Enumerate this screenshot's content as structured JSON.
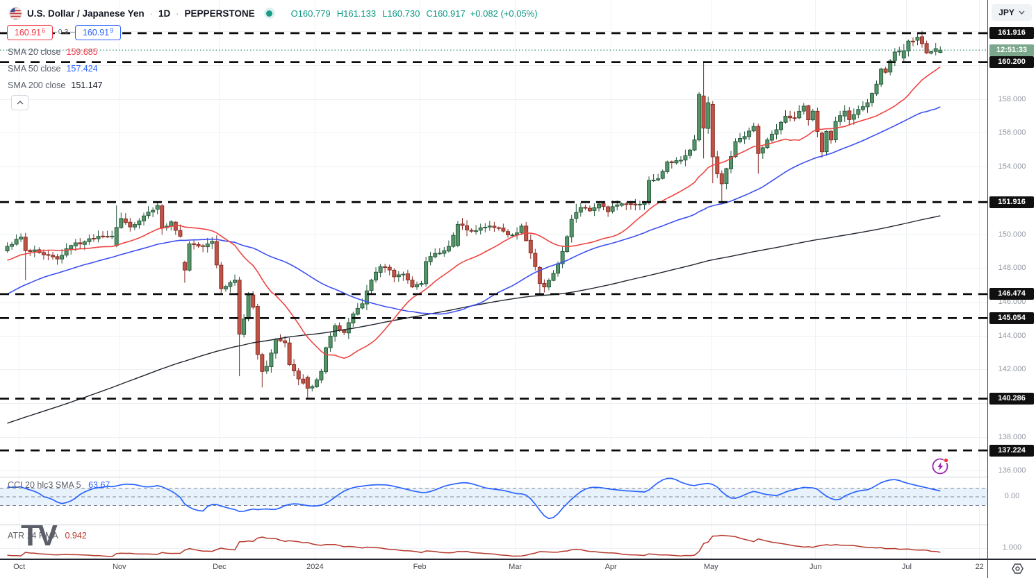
{
  "colors": {
    "green": "#089981",
    "red": "#f23645",
    "blue": "#2962ff",
    "text": "#131722",
    "sub": "#5a5e69",
    "axis_text": "#9196a1",
    "time_text": "#43474f",
    "up_fill": "#559668",
    "up_border": "#2a5b3f",
    "down_fill": "#bf5447",
    "down_border": "#8a2f27",
    "sma20": "#ee4440",
    "sma50": "#3c50f0",
    "sma200": "#20242e",
    "cci_line": "#2962ff",
    "cci_band": "#e8f2fd",
    "atr_line": "#b5362a",
    "level": "#0b0b0b",
    "current": "#3f947c",
    "countdown_bg": "#7ba78c",
    "grid": "#eef1f5",
    "divider": "#cdd0d8",
    "axis_border": "#43464e",
    "label_bg": "#101010"
  },
  "header": {
    "symbol": "U.S. Dollar / Japanese Yen",
    "separator": "·",
    "interval": "1D",
    "exchange": "PEPPERSTONE",
    "ohlc": [
      "O160.779",
      "H161.133",
      "L160.730",
      "C160.917"
    ],
    "change": "+0.082 (+0.05%)"
  },
  "quote": {
    "bid_main": "160.91",
    "bid_sup": "6",
    "spread": "0.3",
    "ask_main": "160.91",
    "ask_sup": "9"
  },
  "legend": {
    "sma_rows": [
      {
        "label": "SMA 20 close",
        "value": "159.685",
        "color": "#f23645"
      },
      {
        "label": "SMA 50 close",
        "value": "157.424",
        "color": "#2962ff"
      },
      {
        "label": "SMA 200 close",
        "value": "151.147",
        "color": "#131722"
      }
    ]
  },
  "indicators": {
    "cci_label": "CCI 20 hlc3 SMA 5",
    "cci_value": "63.67",
    "atr_label": "ATR 14 RMA",
    "atr_value": "0.942"
  },
  "price_axis": {
    "currency": "JPY",
    "countdown": "12:51:33",
    "ticks": [
      158,
      156,
      154,
      150,
      148,
      146,
      144,
      142,
      138,
      136
    ],
    "cci_tick": "0.00",
    "atr_tick": "1.000"
  },
  "time_axis": {
    "labels": [
      {
        "t": "Oct",
        "d": 3
      },
      {
        "t": "Nov",
        "d": 25
      },
      {
        "t": "Dec",
        "d": 47
      },
      {
        "t": "2024",
        "d": 68
      },
      {
        "t": "Feb",
        "d": 91
      },
      {
        "t": "Mar",
        "d": 112
      },
      {
        "t": "Apr",
        "d": 133
      },
      {
        "t": "May",
        "d": 155
      },
      {
        "t": "Jun",
        "d": 178
      },
      {
        "t": "Jul",
        "d": 198
      },
      {
        "t": "22",
        "d": 214
      }
    ]
  },
  "watermark": "TV",
  "icons": {
    "flag": "us-flag-icon",
    "status": "market-status-dot",
    "collapse": "chevron-up-icon",
    "dropdown": "chevron-down-icon",
    "spark": "lightning-icon",
    "timezone": "gear-icon"
  },
  "chart_data": {
    "type": "candlestick",
    "symbol": "USDJPY",
    "timeframe": "1D",
    "current_price": 160.917,
    "ohlc_last": {
      "open": 160.779,
      "high": 161.133,
      "low": 160.73,
      "close": 160.917,
      "change": 0.082,
      "change_pct": 0.05
    },
    "levels": [
      161.916,
      160.2,
      151.916,
      146.474,
      145.054,
      140.286,
      137.224
    ],
    "grid_prices": [
      162,
      160,
      158,
      156,
      154,
      152,
      150,
      148,
      146,
      144,
      142,
      140,
      138,
      136
    ],
    "sma_values": {
      "sma20": 159.685,
      "sma50": 157.424,
      "sma200": 151.147
    },
    "cci": {
      "period": 20,
      "source": "hlc3",
      "smooth": 5,
      "last": 63.67,
      "band": 100
    },
    "atr": {
      "period": 14,
      "mode": "RMA",
      "last": 0.942
    },
    "prehistory": [
      [
        -200,
        131.8
      ],
      [
        -175,
        130.2
      ],
      [
        -150,
        133.5
      ],
      [
        -125,
        136.0
      ],
      [
        -100,
        139.5
      ],
      [
        -80,
        143.5
      ],
      [
        -65,
        138.8
      ],
      [
        -50,
        142.0
      ],
      [
        -35,
        145.5
      ],
      [
        -20,
        147.3
      ],
      [
        -10,
        148.6
      ],
      [
        -1,
        149.2
      ]
    ],
    "anchors": [
      [
        0,
        149.3
      ],
      [
        3,
        149.85
      ],
      [
        4,
        149.05
      ],
      [
        8,
        148.8
      ],
      [
        11,
        148.55
      ],
      [
        14,
        149.35
      ],
      [
        18,
        149.75
      ],
      [
        21,
        149.9
      ],
      [
        23,
        149.9
      ],
      [
        25,
        150.95
      ],
      [
        27,
        150.45
      ],
      [
        30,
        151.1
      ],
      [
        33,
        151.72
      ],
      [
        34,
        150.4
      ],
      [
        36,
        150.75
      ],
      [
        38,
        149.9
      ],
      [
        39,
        147.9
      ],
      [
        40,
        149.45
      ],
      [
        43,
        149.3
      ],
      [
        45,
        149.6
      ],
      [
        46,
        148.2
      ],
      [
        47,
        146.8
      ],
      [
        49,
        147.15
      ],
      [
        50,
        147.3
      ],
      [
        51,
        144.1
      ],
      [
        52,
        145.0
      ],
      [
        53,
        146.4
      ],
      [
        54,
        145.7
      ],
      [
        55,
        142.9
      ],
      [
        56,
        141.9
      ],
      [
        57,
        142.2
      ],
      [
        59,
        143.8
      ],
      [
        61,
        143.6
      ],
      [
        62,
        142.3
      ],
      [
        64,
        141.45
      ],
      [
        66,
        140.9
      ],
      [
        67,
        141.0
      ],
      [
        68,
        141.4
      ],
      [
        69,
        141.9
      ],
      [
        70,
        143.3
      ],
      [
        72,
        144.6
      ],
      [
        74,
        144.2
      ],
      [
        76,
        145.3
      ],
      [
        78,
        145.9
      ],
      [
        80,
        147.3
      ],
      [
        82,
        148.1
      ],
      [
        84,
        147.9
      ],
      [
        85,
        147.5
      ],
      [
        87,
        147.65
      ],
      [
        89,
        146.9
      ],
      [
        91,
        147.1
      ],
      [
        92,
        148.4
      ],
      [
        93,
        148.7
      ],
      [
        95,
        148.9
      ],
      [
        97,
        149.3
      ],
      [
        99,
        150.6
      ],
      [
        102,
        150.2
      ],
      [
        104,
        150.4
      ],
      [
        106,
        150.5
      ],
      [
        108,
        150.4
      ],
      [
        110,
        149.98
      ],
      [
        112,
        150.1
      ],
      [
        113,
        150.5
      ],
      [
        116,
        148.1
      ],
      [
        117,
        147.1
      ],
      [
        118,
        146.9
      ],
      [
        120,
        147.7
      ],
      [
        122,
        149.0
      ],
      [
        124,
        150.9
      ],
      [
        125,
        151.3
      ],
      [
        126,
        151.6
      ],
      [
        128,
        151.4
      ],
      [
        130,
        151.8
      ],
      [
        132,
        151.35
      ],
      [
        133,
        151.65
      ],
      [
        136,
        151.8
      ],
      [
        140,
        151.9
      ],
      [
        141,
        153.2
      ],
      [
        143,
        153.3
      ],
      [
        145,
        154.3
      ],
      [
        148,
        154.4
      ],
      [
        150,
        155.0
      ],
      [
        151,
        155.6
      ],
      [
        152,
        158.3
      ],
      [
        153,
        156.3
      ],
      [
        154,
        157.8
      ],
      [
        155,
        154.6
      ],
      [
        156,
        153.6
      ],
      [
        157,
        153.0
      ],
      [
        158,
        153.9
      ],
      [
        160,
        155.5
      ],
      [
        162,
        155.8
      ],
      [
        164,
        156.4
      ],
      [
        165,
        154.8
      ],
      [
        167,
        155.6
      ],
      [
        169,
        156.2
      ],
      [
        171,
        157.0
      ],
      [
        173,
        156.9
      ],
      [
        175,
        157.6
      ],
      [
        176,
        156.8
      ],
      [
        177,
        157.3
      ],
      [
        178,
        156.1
      ],
      [
        179,
        154.9
      ],
      [
        180,
        156.1
      ],
      [
        181,
        155.6
      ],
      [
        182,
        156.7
      ],
      [
        184,
        157.3
      ],
      [
        185,
        156.8
      ],
      [
        187,
        157.4
      ],
      [
        189,
        157.8
      ],
      [
        191,
        158.9
      ],
      [
        192,
        159.8
      ],
      [
        193,
        159.6
      ],
      [
        195,
        160.8
      ],
      [
        197,
        160.88
      ],
      [
        198,
        161.45
      ],
      [
        199,
        161.44
      ],
      [
        200,
        161.68
      ],
      [
        201,
        161.3
      ],
      [
        202,
        160.75
      ],
      [
        203,
        160.82
      ],
      [
        204,
        161.0
      ],
      [
        205,
        160.917
      ]
    ],
    "specials": {
      "4": [
        149.85,
        150.1,
        147.3,
        149.05
      ],
      "24": [
        149.35,
        151.72,
        149.25,
        150.42
      ],
      "33": [
        151.5,
        151.91,
        151.2,
        151.72
      ],
      "34": [
        151.7,
        151.8,
        150.0,
        150.4
      ],
      "39": [
        148.35,
        148.45,
        147.15,
        147.9
      ],
      "51": [
        147.3,
        147.5,
        141.62,
        144.1
      ],
      "55": [
        145.75,
        145.9,
        142.6,
        142.9
      ],
      "56": [
        142.9,
        143.0,
        140.95,
        141.9
      ],
      "66": [
        141.55,
        141.65,
        140.25,
        140.9
      ],
      "99": [
        149.35,
        150.8,
        149.25,
        150.6
      ],
      "117": [
        148.05,
        148.15,
        146.48,
        147.1
      ],
      "125": [
        150.95,
        151.82,
        150.7,
        151.3
      ],
      "152": [
        155.6,
        158.44,
        155.5,
        158.3
      ],
      "153": [
        158.2,
        160.17,
        154.5,
        156.3
      ],
      "155": [
        157.7,
        157.9,
        153.04,
        154.6
      ],
      "157": [
        153.6,
        153.8,
        151.86,
        153.0
      ],
      "165": [
        156.4,
        156.55,
        153.6,
        154.8
      ],
      "179": [
        156.0,
        156.1,
        154.55,
        154.9
      ],
      "197": [
        160.45,
        161.28,
        160.26,
        160.88
      ],
      "200": [
        161.5,
        161.95,
        161.2,
        161.68
      ],
      "205": [
        160.779,
        161.133,
        160.73,
        160.917
      ]
    }
  }
}
